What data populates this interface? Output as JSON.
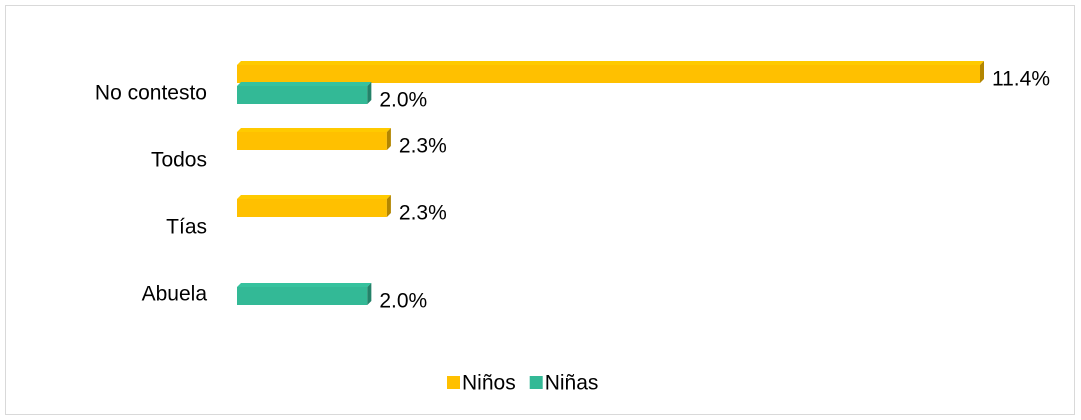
{
  "chart_data": {
    "type": "bar",
    "orientation": "horizontal",
    "categories": [
      "No contesto",
      "Todos",
      "Tías",
      "Abuela"
    ],
    "series": [
      {
        "name": "Niños",
        "color": "#ffc000",
        "values": [
          11.4,
          2.3,
          2.3,
          null
        ],
        "value_labels": [
          "11.4%",
          "2.3%",
          "2.3%",
          null
        ]
      },
      {
        "name": "Niñas",
        "color": "#33b996",
        "values": [
          2.0,
          null,
          null,
          2.0
        ],
        "value_labels": [
          "2.0%",
          null,
          null,
          "2.0%"
        ]
      }
    ],
    "legend": "bottom"
  }
}
